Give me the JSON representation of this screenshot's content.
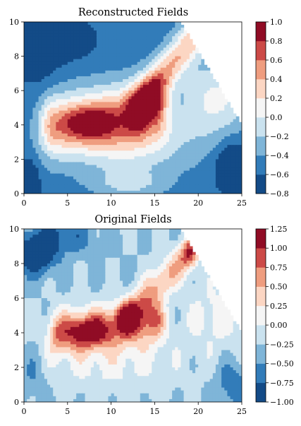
{
  "chart_data": [
    {
      "type": "contour",
      "title": "Reconstructed Fields",
      "xlabel": "",
      "ylabel": "",
      "xlim": [
        0,
        25
      ],
      "ylim": [
        0,
        10
      ],
      "xticks": [
        "0",
        "5",
        "10",
        "15",
        "20",
        "25"
      ],
      "yticks": [
        "0",
        "2",
        "4",
        "6",
        "8",
        "10"
      ],
      "grid": false,
      "colorbar": {
        "levels": [
          -0.8,
          -0.6,
          -0.4,
          -0.2,
          0.0,
          0.2,
          0.4,
          0.6,
          0.8,
          1.0
        ],
        "tick_labels": [
          "−0.8",
          "−0.6",
          "−0.4",
          "−0.2",
          "0.0",
          "0.2",
          "0.4",
          "0.6",
          "0.8",
          "1.0"
        ],
        "colors": [
          "#134b87",
          "#327cb9",
          "#7fb5d8",
          "#cae2ef",
          "#f5f5f5",
          "#fcd6c3",
          "#ef9d7f",
          "#cc4a47",
          "#900c25"
        ]
      },
      "features": [
        {
          "x": 8,
          "y": 4,
          "value": 0.95,
          "desc": "positive core"
        },
        {
          "x": 18,
          "y": 8.5,
          "value": 0.65,
          "desc": "secondary maximum"
        },
        {
          "x": 4,
          "y": 9,
          "value": -0.65,
          "desc": "negative region"
        },
        {
          "x": 24,
          "y": 1.5,
          "value": -0.65,
          "desc": "negative region"
        },
        {
          "x": 0.5,
          "y": 0.5,
          "value": -0.65,
          "desc": "negative corner"
        }
      ],
      "masked_region": "upper-right triangle above the line from (18,10) to (25,4) is blank"
    },
    {
      "type": "contour",
      "title": "Original Fields",
      "xlabel": "",
      "ylabel": "",
      "xlim": [
        0,
        25
      ],
      "ylim": [
        0,
        10
      ],
      "xticks": [
        "0",
        "5",
        "10",
        "15",
        "20",
        "25"
      ],
      "yticks": [
        "0",
        "2",
        "4",
        "6",
        "8",
        "10"
      ],
      "grid": false,
      "colorbar": {
        "levels": [
          -1.0,
          -0.75,
          -0.5,
          -0.25,
          0.0,
          0.25,
          0.5,
          0.75,
          1.0,
          1.25
        ],
        "tick_labels": [
          "−1.00",
          "−0.75",
          "−0.50",
          "−0.25",
          "0.00",
          "0.25",
          "0.50",
          "0.75",
          "1.00",
          "1.25"
        ],
        "colors": [
          "#134b87",
          "#327cb9",
          "#7fb5d8",
          "#cae2ef",
          "#f5f5f5",
          "#fcd6c3",
          "#ef9d7f",
          "#cc4a47",
          "#900c25"
        ]
      },
      "features": [
        {
          "x": 8,
          "y": 4,
          "value": 1.1,
          "desc": "positive core"
        },
        {
          "x": 18.5,
          "y": 8.5,
          "value": 0.85,
          "desc": "secondary maximum"
        },
        {
          "x": 1.5,
          "y": 8.5,
          "value": -0.85,
          "desc": "negative region"
        },
        {
          "x": 24,
          "y": 1.0,
          "value": -0.65,
          "desc": "negative region"
        }
      ],
      "masked_region": "upper-right triangle above the line from (18,10) to (25,4) is blank"
    }
  ]
}
